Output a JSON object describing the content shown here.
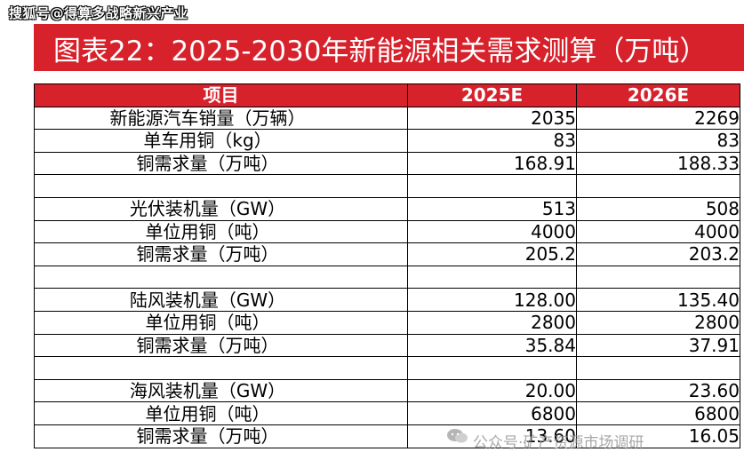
{
  "watermark_top": "搜狐号@得算多战略新兴产业",
  "title": "图表22：2025-2030年新能源相关需求测算（万吨）",
  "table": {
    "headers": [
      "项目",
      "2025E",
      "2026E"
    ],
    "rows": [
      [
        "新能源汽车销量（万辆）",
        "2035",
        "2269"
      ],
      [
        "单车用铜（kg）",
        "83",
        "83"
      ],
      [
        "铜需求量（万吨）",
        "168.91",
        "188.33"
      ],
      [
        "",
        "",
        ""
      ],
      [
        "光伏装机量（GW）",
        "513",
        "508"
      ],
      [
        "单位用铜（吨）",
        "4000",
        "4000"
      ],
      [
        "铜需求量（万吨）",
        "205.2",
        "203.2"
      ],
      [
        "",
        "",
        ""
      ],
      [
        "陆风装机量（GW）",
        "128.00",
        "135.40"
      ],
      [
        "单位用铜（吨）",
        "2800",
        "2800"
      ],
      [
        "铜需求量（万吨）",
        "35.84",
        "37.91"
      ],
      [
        "",
        "",
        ""
      ],
      [
        "海风装机量（GW）",
        "20.00",
        "23.60"
      ],
      [
        "单位用铜（吨）",
        "6800",
        "6800"
      ],
      [
        "铜需求量（万吨）",
        "13.60",
        "16.05"
      ]
    ]
  },
  "watermark_bottom": "公众号·矿产资源市场调研"
}
